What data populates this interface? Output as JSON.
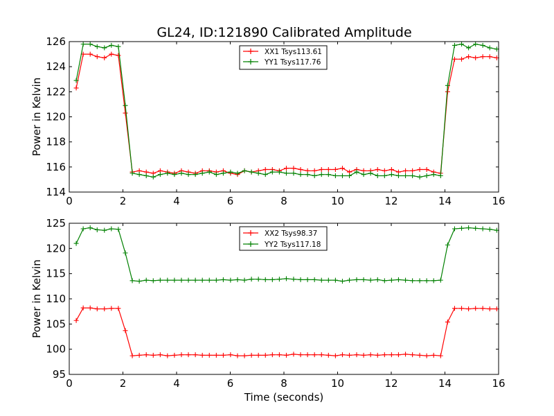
{
  "figure": {
    "title": "GL24, ID:121890 Calibrated Amplitude"
  },
  "chart_data": [
    {
      "type": "line",
      "title": "GL24, ID:121890 Calibrated Amplitude",
      "xlabel": "",
      "ylabel": "Power in Kelvin",
      "xlim": [
        0,
        16
      ],
      "ylim": [
        114,
        126
      ],
      "xticks": [
        0,
        2,
        4,
        6,
        8,
        10,
        12,
        14,
        16
      ],
      "yticks": [
        114,
        116,
        118,
        120,
        122,
        124,
        126
      ],
      "grid": false,
      "legend_position": "top-center",
      "x": [
        0.26,
        0.52,
        0.78,
        1.04,
        1.31,
        1.57,
        1.83,
        2.09,
        2.35,
        2.61,
        2.87,
        3.13,
        3.39,
        3.66,
        3.92,
        4.18,
        4.44,
        4.7,
        4.96,
        5.22,
        5.48,
        5.74,
        6.01,
        6.27,
        6.53,
        6.79,
        7.05,
        7.31,
        7.57,
        7.83,
        8.09,
        8.36,
        8.62,
        8.88,
        9.14,
        9.4,
        9.66,
        9.92,
        10.18,
        10.44,
        10.71,
        10.97,
        11.23,
        11.49,
        11.75,
        12.01,
        12.27,
        12.53,
        12.79,
        13.06,
        13.32,
        13.58,
        13.84,
        14.1,
        14.36,
        14.62,
        14.88,
        15.14,
        15.41,
        15.67,
        15.93
      ],
      "series": [
        {
          "name": "XX1 Tsys113.61",
          "color": "#ff0000",
          "values": [
            122.3,
            125.0,
            125.0,
            124.8,
            124.7,
            125.0,
            124.9,
            120.3,
            115.6,
            115.7,
            115.6,
            115.5,
            115.7,
            115.6,
            115.5,
            115.7,
            115.6,
            115.5,
            115.7,
            115.7,
            115.6,
            115.7,
            115.5,
            115.4,
            115.7,
            115.6,
            115.7,
            115.8,
            115.8,
            115.7,
            115.9,
            115.9,
            115.8,
            115.7,
            115.7,
            115.8,
            115.8,
            115.8,
            115.9,
            115.6,
            115.8,
            115.7,
            115.7,
            115.8,
            115.7,
            115.8,
            115.6,
            115.7,
            115.7,
            115.8,
            115.8,
            115.6,
            115.5,
            122.0,
            124.6,
            124.6,
            124.8,
            124.7,
            124.8,
            124.8,
            124.7
          ]
        },
        {
          "name": "YY1 Tsys117.76",
          "color": "#008000",
          "values": [
            122.9,
            125.8,
            125.8,
            125.6,
            125.5,
            125.7,
            125.6,
            120.9,
            115.5,
            115.4,
            115.3,
            115.2,
            115.4,
            115.5,
            115.4,
            115.5,
            115.4,
            115.4,
            115.5,
            115.6,
            115.4,
            115.5,
            115.6,
            115.5,
            115.7,
            115.6,
            115.5,
            115.4,
            115.6,
            115.6,
            115.5,
            115.5,
            115.4,
            115.4,
            115.3,
            115.4,
            115.4,
            115.3,
            115.3,
            115.3,
            115.6,
            115.4,
            115.5,
            115.3,
            115.3,
            115.4,
            115.3,
            115.3,
            115.3,
            115.2,
            115.3,
            115.4,
            115.3,
            122.5,
            125.7,
            125.8,
            125.5,
            125.8,
            125.7,
            125.5,
            125.4
          ]
        }
      ]
    },
    {
      "type": "line",
      "title": "",
      "xlabel": "Time (seconds)",
      "ylabel": "Power in Kelvin",
      "xlim": [
        0,
        16
      ],
      "ylim": [
        95,
        125
      ],
      "xticks": [
        0,
        2,
        4,
        6,
        8,
        10,
        12,
        14,
        16
      ],
      "yticks": [
        95,
        100,
        105,
        110,
        115,
        120,
        125
      ],
      "grid": false,
      "legend_position": "top-center",
      "x": [
        0.26,
        0.52,
        0.78,
        1.04,
        1.31,
        1.57,
        1.83,
        2.09,
        2.35,
        2.61,
        2.87,
        3.13,
        3.39,
        3.66,
        3.92,
        4.18,
        4.44,
        4.7,
        4.96,
        5.22,
        5.48,
        5.74,
        6.01,
        6.27,
        6.53,
        6.79,
        7.05,
        7.31,
        7.57,
        7.83,
        8.09,
        8.36,
        8.62,
        8.88,
        9.14,
        9.4,
        9.66,
        9.92,
        10.18,
        10.44,
        10.71,
        10.97,
        11.23,
        11.49,
        11.75,
        12.01,
        12.27,
        12.53,
        12.79,
        13.06,
        13.32,
        13.58,
        13.84,
        14.1,
        14.36,
        14.62,
        14.88,
        15.14,
        15.41,
        15.67,
        15.93
      ],
      "series": [
        {
          "name": "XX2 Tsys98.37",
          "color": "#ff0000",
          "values": [
            105.7,
            108.2,
            108.2,
            108.0,
            108.0,
            108.1,
            108.1,
            103.7,
            98.7,
            98.8,
            98.9,
            98.8,
            98.9,
            98.7,
            98.8,
            98.9,
            98.9,
            98.9,
            98.8,
            98.8,
            98.8,
            98.8,
            98.9,
            98.7,
            98.7,
            98.8,
            98.8,
            98.8,
            98.9,
            98.9,
            98.8,
            99.0,
            98.9,
            98.9,
            98.9,
            98.9,
            98.8,
            98.7,
            98.9,
            98.8,
            98.9,
            98.8,
            98.9,
            98.8,
            98.9,
            98.9,
            98.9,
            99.0,
            98.9,
            98.8,
            98.7,
            98.8,
            98.7,
            105.4,
            108.1,
            108.1,
            108.0,
            108.1,
            108.1,
            108.0,
            108.0
          ]
        },
        {
          "name": "YY2 Tsys117.18",
          "color": "#008000",
          "values": [
            121.0,
            123.9,
            124.1,
            123.7,
            123.6,
            123.9,
            123.8,
            119.1,
            113.6,
            113.5,
            113.7,
            113.6,
            113.7,
            113.7,
            113.7,
            113.7,
            113.7,
            113.7,
            113.7,
            113.7,
            113.7,
            113.8,
            113.7,
            113.8,
            113.7,
            113.9,
            113.9,
            113.8,
            113.8,
            113.9,
            114.0,
            113.9,
            113.8,
            113.8,
            113.8,
            113.7,
            113.7,
            113.7,
            113.5,
            113.7,
            113.8,
            113.8,
            113.7,
            113.8,
            113.6,
            113.7,
            113.8,
            113.7,
            113.6,
            113.6,
            113.6,
            113.6,
            113.7,
            120.7,
            123.9,
            124.0,
            124.1,
            124.0,
            123.9,
            123.8,
            123.6
          ]
        }
      ]
    }
  ]
}
